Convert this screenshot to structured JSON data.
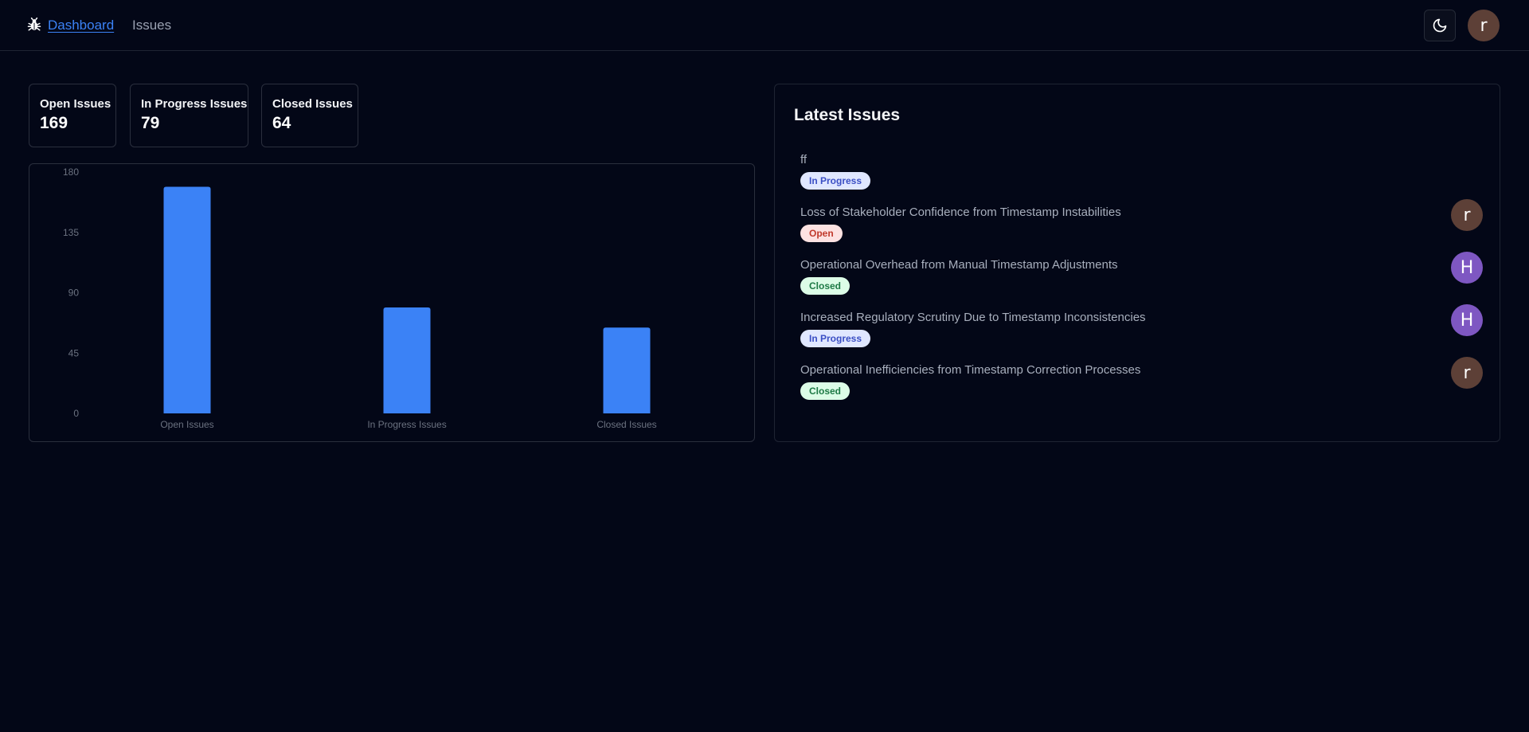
{
  "nav": {
    "links": [
      {
        "label": "Dashboard",
        "active": true
      },
      {
        "label": "Issues",
        "active": false
      }
    ],
    "theme_icon": "moon-icon",
    "user_avatar": {
      "initial": "r",
      "color": "#5d4037"
    }
  },
  "stats": [
    {
      "label": "Open Issues",
      "value": "169"
    },
    {
      "label": "In Progress Issues",
      "value": "79"
    },
    {
      "label": "Closed Issues",
      "value": "64"
    }
  ],
  "chart_data": {
    "type": "bar",
    "categories": [
      "Open Issues",
      "In Progress Issues",
      "Closed Issues"
    ],
    "values": [
      169,
      79,
      64
    ],
    "ylim": [
      0,
      180
    ],
    "yticks": [
      0,
      45,
      90,
      135,
      180
    ],
    "bar_color": "#3b82f6",
    "grid": false,
    "legend": "none"
  },
  "latest": {
    "title": "Latest Issues",
    "issues": [
      {
        "title": "ff",
        "status": "In Progress",
        "avatar": null
      },
      {
        "title": "Loss of Stakeholder Confidence from Timestamp Instabilities",
        "status": "Open",
        "avatar": {
          "initial": "r",
          "color": "#5d4037"
        }
      },
      {
        "title": "Operational Overhead from Manual Timestamp Adjustments",
        "status": "Closed",
        "avatar": {
          "initial": "H",
          "color": "#7e57c2"
        }
      },
      {
        "title": "Increased Regulatory Scrutiny Due to Timestamp Inconsistencies",
        "status": "In Progress",
        "avatar": {
          "initial": "H",
          "color": "#7e57c2"
        }
      },
      {
        "title": "Operational Inefficiencies from Timestamp Correction Processes",
        "status": "Closed",
        "avatar": {
          "initial": "r",
          "color": "#5d4037"
        }
      }
    ]
  },
  "status_colors": {
    "In Progress": {
      "bg": "#e0e7ff",
      "fg": "#3b4fc4"
    },
    "Open": {
      "bg": "#fde2e2",
      "fg": "#c0392b"
    },
    "Closed": {
      "bg": "#dcfce7",
      "fg": "#1e7a46"
    }
  }
}
